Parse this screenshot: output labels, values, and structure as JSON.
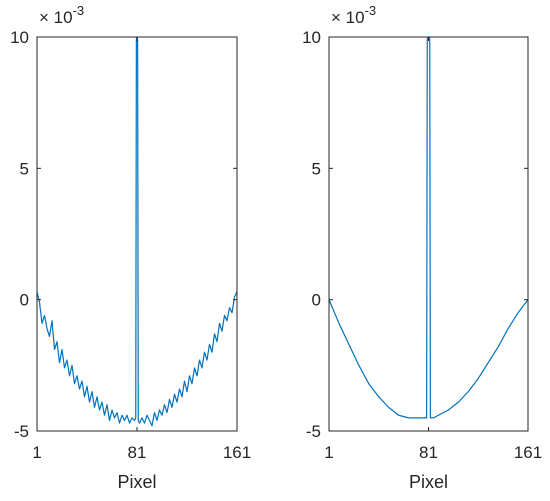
{
  "chart_data": [
    {
      "type": "line",
      "title": "",
      "xlabel": "Pixel",
      "ylabel": "",
      "xlim": [
        1,
        161
      ],
      "ylim": [
        -0.005,
        0.01
      ],
      "x_ticks": [
        1,
        81,
        161
      ],
      "x_tick_labels": [
        "1",
        "81",
        "161"
      ],
      "y_ticks": [
        -0.005,
        0,
        0.005,
        0.01
      ],
      "y_tick_labels": [
        "-5",
        "0",
        "5",
        "10"
      ],
      "y_multiplier": {
        "base": "× 10",
        "exponent": "-3"
      },
      "grid": false,
      "line_color": "#0072BD",
      "series": [
        {
          "x": [
            1,
            3,
            5,
            7,
            9,
            11,
            13,
            15,
            17,
            19,
            21,
            23,
            25,
            27,
            29,
            31,
            33,
            35,
            37,
            39,
            41,
            43,
            45,
            47,
            49,
            51,
            53,
            55,
            57,
            59,
            61,
            63,
            65,
            67,
            69,
            71,
            73,
            75,
            77,
            79,
            80,
            80.5,
            81,
            81.5,
            82,
            83,
            85,
            87,
            89,
            91,
            93,
            95,
            97,
            99,
            101,
            103,
            105,
            107,
            109,
            111,
            113,
            115,
            117,
            119,
            121,
            123,
            125,
            127,
            129,
            131,
            133,
            135,
            137,
            139,
            141,
            143,
            145,
            147,
            149,
            151,
            153,
            155,
            157,
            159,
            161
          ],
          "values": [
            0.0003,
            -0.0001,
            -0.0009,
            -0.0006,
            -0.0011,
            -0.0014,
            -0.0008,
            -0.0019,
            -0.0016,
            -0.0024,
            -0.0019,
            -0.0026,
            -0.0023,
            -0.0029,
            -0.0025,
            -0.0032,
            -0.0029,
            -0.0034,
            -0.0031,
            -0.0037,
            -0.0033,
            -0.0039,
            -0.0035,
            -0.0041,
            -0.0037,
            -0.0042,
            -0.0039,
            -0.0044,
            -0.004,
            -0.0046,
            -0.0042,
            -0.0045,
            -0.0043,
            -0.0047,
            -0.0044,
            -0.0046,
            -0.0044,
            -0.0047,
            -0.0045,
            -0.0046,
            -0.0045,
            0.0099,
            0.01,
            0.0099,
            -0.0046,
            -0.0047,
            -0.0045,
            -0.0047,
            -0.0044,
            -0.0046,
            -0.0048,
            -0.0043,
            -0.0046,
            -0.0042,
            -0.0044,
            -0.004,
            -0.0043,
            -0.0038,
            -0.0041,
            -0.0036,
            -0.0039,
            -0.0034,
            -0.0037,
            -0.0031,
            -0.0035,
            -0.0029,
            -0.0032,
            -0.0026,
            -0.0029,
            -0.0023,
            -0.0026,
            -0.002,
            -0.0023,
            -0.0017,
            -0.002,
            -0.0013,
            -0.0016,
            -0.0009,
            -0.0012,
            -0.0006,
            -0.0008,
            -0.0003,
            -0.0005,
            0.0001,
            0.0003
          ]
        }
      ]
    },
    {
      "type": "line",
      "title": "",
      "xlabel": "Pixel",
      "ylabel": "",
      "xlim": [
        1,
        161
      ],
      "ylim": [
        -0.005,
        0.01
      ],
      "x_ticks": [
        1,
        81,
        161
      ],
      "x_tick_labels": [
        "1",
        "81",
        "161"
      ],
      "y_ticks": [
        -0.005,
        0,
        0.005,
        0.01
      ],
      "y_tick_labels": [
        "-5",
        "0",
        "5",
        "10"
      ],
      "y_multiplier": {
        "base": "× 10",
        "exponent": "-3"
      },
      "grid": false,
      "line_color": "#0072BD",
      "series": [
        {
          "x": [
            1,
            9,
            17,
            25,
            33,
            41,
            49,
            57,
            65,
            73,
            77,
            79,
            79.5,
            80,
            80.5,
            81,
            81.5,
            82,
            82.5,
            83,
            85,
            89,
            97,
            105,
            113,
            121,
            129,
            137,
            145,
            153,
            161
          ],
          "values": [
            0.0,
            -0.0009,
            -0.0017,
            -0.0025,
            -0.0032,
            -0.0037,
            -0.0041,
            -0.0044,
            -0.0045,
            -0.0045,
            -0.0045,
            -0.0045,
            -0.0045,
            0.0099,
            0.01,
            0.01,
            0.01,
            0.0099,
            -0.0045,
            -0.0045,
            -0.0045,
            -0.0044,
            -0.0042,
            -0.0039,
            -0.0035,
            -0.003,
            -0.0024,
            -0.0018,
            -0.0011,
            -0.0005,
            0.0
          ]
        }
      ]
    }
  ]
}
